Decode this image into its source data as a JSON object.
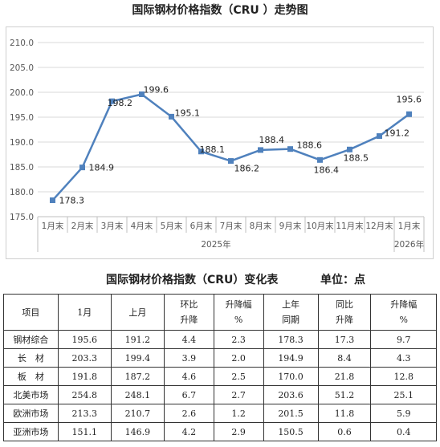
{
  "chart_data": {
    "type": "line",
    "title": "国际钢材价格指数（CRU ）走势图",
    "categories": [
      "1月末",
      "2月末",
      "3月末",
      "4月末",
      "5月末",
      "6月末",
      "7月末",
      "8月末",
      "9月末",
      "10月末",
      "11月末",
      "12月末",
      "1月末"
    ],
    "year_labels": [
      "2025年",
      "2026年"
    ],
    "values": [
      178.3,
      184.9,
      198.2,
      199.6,
      195.1,
      188.1,
      186.2,
      188.4,
      188.6,
      186.4,
      188.5,
      191.2,
      195.6
    ],
    "ylim": [
      175.0,
      210.0
    ],
    "yticks": [
      "175.0",
      "180.0",
      "185.0",
      "190.0",
      "195.0",
      "200.0",
      "205.0",
      "210.0"
    ],
    "grid": true,
    "line_color": "#4f81bd",
    "grid_color": "#d9d9d9"
  },
  "table": {
    "title": "国际钢材价格指数（CRU）变化表",
    "unit": "单位：点",
    "headers": [
      [
        "项目"
      ],
      [
        "1月"
      ],
      [
        "上月"
      ],
      [
        "环比",
        "升降"
      ],
      [
        "升降幅",
        "%"
      ],
      [
        "上年",
        "同期"
      ],
      [
        "同比",
        "升降"
      ],
      [
        "升降幅",
        "%"
      ]
    ],
    "rows": [
      [
        "钢材综合",
        "195.6",
        "191.2",
        "4.4",
        "2.3",
        "178.3",
        "17.3",
        "9.7"
      ],
      [
        "长　材",
        "203.3",
        "199.4",
        "3.9",
        "2.0",
        "194.9",
        "8.4",
        "4.3"
      ],
      [
        "板　材",
        "191.8",
        "187.2",
        "4.6",
        "2.5",
        "170.0",
        "21.8",
        "12.8"
      ],
      [
        "北美市场",
        "254.8",
        "248.1",
        "6.7",
        "2.7",
        "203.6",
        "51.2",
        "25.1"
      ],
      [
        "欧洲市场",
        "213.3",
        "210.7",
        "2.6",
        "1.2",
        "201.5",
        "11.8",
        "5.9"
      ],
      [
        "亚洲市场",
        "151.1",
        "146.9",
        "4.2",
        "2.9",
        "150.5",
        "0.6",
        "0.4"
      ]
    ]
  }
}
